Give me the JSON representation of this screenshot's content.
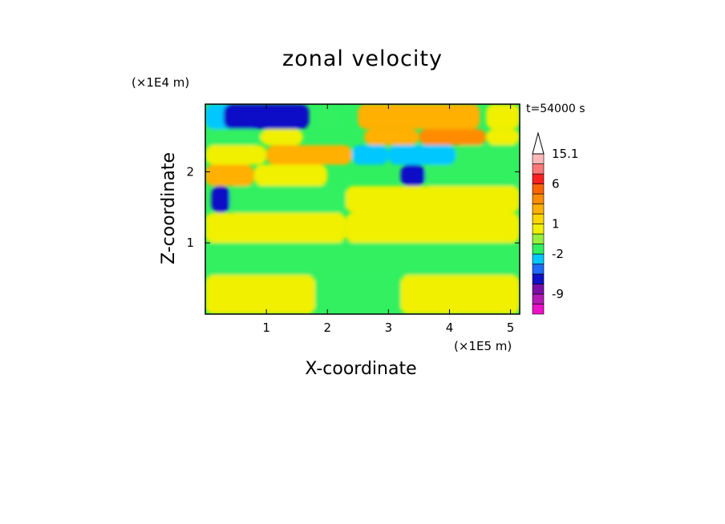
{
  "chart_data": {
    "type": "heatmap",
    "title": "zonal velocity",
    "xlabel": "X-coordinate",
    "ylabel": "Z-coordinate",
    "x_exponent_label": "(×1E5 m)",
    "y_exponent_label": "(×1E4 m)",
    "time_label": "t=54000 s",
    "xlim": [
      0,
      5.15
    ],
    "ylim": [
      0,
      2.95
    ],
    "x_ticks": [
      "1",
      "2",
      "3",
      "4",
      "5"
    ],
    "y_ticks": [
      "1",
      "2"
    ],
    "colorbar": {
      "levels": [
        -13,
        -11,
        -9,
        -7,
        -5,
        -3,
        -2,
        -1,
        0,
        1,
        2,
        3,
        4,
        6,
        9,
        12,
        15.1
      ],
      "labels": [
        "15.1",
        "6",
        "1",
        "-2",
        "-9"
      ],
      "colors": [
        "#ee10c8",
        "#b41ab4",
        "#7a0fa8",
        "#1010c8",
        "#1f6aff",
        "#00c8ff",
        "#30f060",
        "#96f03c",
        "#f0f000",
        "#ffd700",
        "#ffb000",
        "#ff8c00",
        "#ff6400",
        "#ff2020",
        "#ff7878",
        "#ffb8b8"
      ],
      "extend_max": true
    },
    "field_description_rows_z_top_to_bottom": [
      {
        "z": 2.7,
        "features": [
          [
            0.0,
            0.8,
            "cyan"
          ],
          [
            0.3,
            1.7,
            "blue"
          ],
          [
            1.8,
            2.2,
            "green"
          ],
          [
            2.5,
            4.5,
            "orange"
          ],
          [
            4.6,
            5.15,
            "yellow"
          ]
        ]
      },
      {
        "z": 2.5,
        "features": [
          [
            0.0,
            0.9,
            "green"
          ],
          [
            0.9,
            1.6,
            "yellow"
          ],
          [
            2.6,
            3.5,
            "orange"
          ],
          [
            3.5,
            4.6,
            "red-orange"
          ],
          [
            4.6,
            5.15,
            "yellow"
          ]
        ]
      },
      {
        "z": 2.25,
        "features": [
          [
            0.0,
            1.0,
            "yellow"
          ],
          [
            1.0,
            2.4,
            "orange"
          ],
          [
            2.4,
            3.0,
            "cyan"
          ],
          [
            3.0,
            4.1,
            "cyan"
          ],
          [
            4.1,
            5.15,
            "green"
          ]
        ]
      },
      {
        "z": 1.95,
        "features": [
          [
            0.0,
            0.8,
            "orange"
          ],
          [
            0.8,
            2.0,
            "yellow"
          ],
          [
            3.2,
            3.6,
            "blue"
          ],
          [
            3.6,
            5.15,
            "green"
          ]
        ]
      },
      {
        "z": 1.65,
        "features": [
          [
            0.1,
            0.4,
            "blue"
          ],
          [
            0.4,
            2.3,
            "green"
          ],
          [
            2.3,
            5.15,
            "yellow"
          ]
        ]
      },
      {
        "z": 1.2,
        "features": [
          [
            0.0,
            2.3,
            "yellow"
          ],
          [
            2.3,
            5.15,
            "yellow"
          ]
        ]
      },
      {
        "z": 0.8,
        "features": [
          [
            0.0,
            5.15,
            "green"
          ]
        ]
      },
      {
        "z": 0.3,
        "features": [
          [
            0.0,
            1.8,
            "yellow"
          ],
          [
            1.8,
            3.2,
            "green"
          ],
          [
            3.2,
            5.15,
            "yellow"
          ]
        ]
      }
    ]
  }
}
